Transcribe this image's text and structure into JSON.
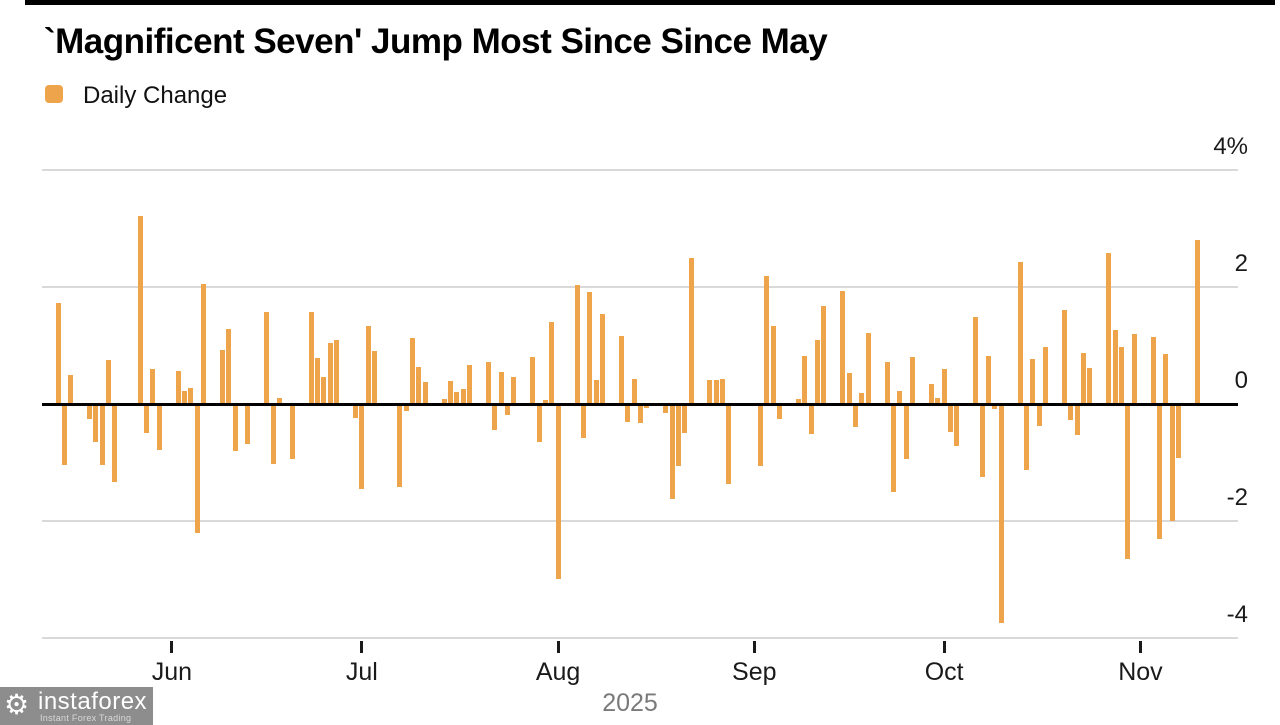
{
  "title": "`Magnificent Seven' Jump Most Since Since May",
  "legend": {
    "label": "Daily Change",
    "swatch_color": "#eda44b"
  },
  "watermark": {
    "brand": "instaforex",
    "tagline": "Instant Forex Trading",
    "logo": "gear-icon"
  },
  "chart_data": {
    "type": "bar",
    "title": "`Magnificent Seven' Jump Most Since Since May",
    "series_name": "Daily Change",
    "unit": "%",
    "bar_color": "#eda44b",
    "x_unit": "calendar day offset from first bar (mid-May 2025), weekends/holidays empty",
    "x_axis": {
      "year_label": "2025",
      "months": [
        {
          "label": "Jun",
          "d": 18
        },
        {
          "label": "Jul",
          "d": 48
        },
        {
          "label": "Aug",
          "d": 79
        },
        {
          "label": "Sep",
          "d": 110
        },
        {
          "label": "Oct",
          "d": 140
        },
        {
          "label": "Nov",
          "d": 171
        }
      ]
    },
    "y_axis": {
      "ticks": [
        {
          "text": "4%",
          "value": 4
        },
        {
          "text": "2",
          "value": 2
        },
        {
          "text": "0",
          "value": 0
        },
        {
          "text": "-2",
          "value": -2
        },
        {
          "text": "-4",
          "value": -4
        }
      ],
      "ylim": [
        -4.6,
        4.6
      ],
      "grid": true,
      "label_side": "right"
    },
    "points": [
      {
        "d": 0,
        "v": 1.73
      },
      {
        "d": 1,
        "v": -1.05
      },
      {
        "d": 2,
        "v": 0.5
      },
      {
        "d": 5,
        "v": -0.25
      },
      {
        "d": 6,
        "v": -0.65
      },
      {
        "d": 7,
        "v": -1.05
      },
      {
        "d": 8,
        "v": 0.75
      },
      {
        "d": 9,
        "v": -1.33
      },
      {
        "d": 13,
        "v": 3.22
      },
      {
        "d": 14,
        "v": -0.5
      },
      {
        "d": 15,
        "v": 0.59
      },
      {
        "d": 16,
        "v": -0.78
      },
      {
        "d": 19,
        "v": 0.57
      },
      {
        "d": 20,
        "v": 0.22
      },
      {
        "d": 21,
        "v": 0.27
      },
      {
        "d": 22,
        "v": -2.21
      },
      {
        "d": 23,
        "v": 2.05
      },
      {
        "d": 26,
        "v": 0.93
      },
      {
        "d": 27,
        "v": 1.29
      },
      {
        "d": 28,
        "v": -0.8
      },
      {
        "d": 30,
        "v": -0.69
      },
      {
        "d": 33,
        "v": 1.57
      },
      {
        "d": 34,
        "v": -1.03
      },
      {
        "d": 35,
        "v": 0.1
      },
      {
        "d": 37,
        "v": -0.94
      },
      {
        "d": 40,
        "v": 1.57
      },
      {
        "d": 41,
        "v": 0.78
      },
      {
        "d": 42,
        "v": 0.47
      },
      {
        "d": 43,
        "v": 1.05
      },
      {
        "d": 44,
        "v": 1.1
      },
      {
        "d": 47,
        "v": -0.24
      },
      {
        "d": 48,
        "v": -1.45
      },
      {
        "d": 49,
        "v": 1.34
      },
      {
        "d": 50,
        "v": 0.9
      },
      {
        "d": 54,
        "v": -1.42
      },
      {
        "d": 55,
        "v": -0.12
      },
      {
        "d": 56,
        "v": 1.12
      },
      {
        "d": 57,
        "v": 0.64
      },
      {
        "d": 58,
        "v": 0.37
      },
      {
        "d": 61,
        "v": 0.08
      },
      {
        "d": 62,
        "v": 0.4
      },
      {
        "d": 63,
        "v": 0.21
      },
      {
        "d": 64,
        "v": 0.25
      },
      {
        "d": 65,
        "v": 0.66
      },
      {
        "d": 68,
        "v": 0.71
      },
      {
        "d": 69,
        "v": -0.45
      },
      {
        "d": 70,
        "v": 0.54
      },
      {
        "d": 71,
        "v": -0.18
      },
      {
        "d": 72,
        "v": 0.47
      },
      {
        "d": 75,
        "v": 0.8
      },
      {
        "d": 76,
        "v": -0.65
      },
      {
        "d": 77,
        "v": 0.06
      },
      {
        "d": 78,
        "v": 1.4
      },
      {
        "d": 79,
        "v": -2.99
      },
      {
        "d": 82,
        "v": 2.04
      },
      {
        "d": 83,
        "v": -0.58
      },
      {
        "d": 84,
        "v": 1.91
      },
      {
        "d": 85,
        "v": 0.41
      },
      {
        "d": 86,
        "v": 1.53
      },
      {
        "d": 89,
        "v": 1.16
      },
      {
        "d": 90,
        "v": -0.3
      },
      {
        "d": 91,
        "v": 0.42
      },
      {
        "d": 92,
        "v": -0.33
      },
      {
        "d": 93,
        "v": -0.07
      },
      {
        "d": 96,
        "v": -0.16
      },
      {
        "d": 97,
        "v": -1.62
      },
      {
        "d": 98,
        "v": -1.06
      },
      {
        "d": 99,
        "v": -0.5
      },
      {
        "d": 100,
        "v": 2.5
      },
      {
        "d": 103,
        "v": 0.41
      },
      {
        "d": 104,
        "v": 0.41
      },
      {
        "d": 105,
        "v": 0.42
      },
      {
        "d": 106,
        "v": -1.37
      },
      {
        "d": 111,
        "v": -1.06
      },
      {
        "d": 112,
        "v": 2.19
      },
      {
        "d": 113,
        "v": 1.33
      },
      {
        "d": 114,
        "v": -0.25
      },
      {
        "d": 117,
        "v": 0.08
      },
      {
        "d": 118,
        "v": 0.82
      },
      {
        "d": 119,
        "v": -0.52
      },
      {
        "d": 120,
        "v": 1.1
      },
      {
        "d": 121,
        "v": 1.67
      },
      {
        "d": 124,
        "v": 1.94
      },
      {
        "d": 125,
        "v": 0.53
      },
      {
        "d": 126,
        "v": -0.4
      },
      {
        "d": 127,
        "v": 0.19
      },
      {
        "d": 128,
        "v": 1.22
      },
      {
        "d": 131,
        "v": 0.72
      },
      {
        "d": 132,
        "v": -1.51
      },
      {
        "d": 133,
        "v": 0.23
      },
      {
        "d": 134,
        "v": -0.94
      },
      {
        "d": 135,
        "v": 0.8
      },
      {
        "d": 138,
        "v": 0.35
      },
      {
        "d": 139,
        "v": 0.1
      },
      {
        "d": 140,
        "v": 0.59
      },
      {
        "d": 141,
        "v": -0.48
      },
      {
        "d": 142,
        "v": -0.71
      },
      {
        "d": 145,
        "v": 1.49
      },
      {
        "d": 146,
        "v": -1.25
      },
      {
        "d": 147,
        "v": 0.82
      },
      {
        "d": 148,
        "v": -0.09
      },
      {
        "d": 149,
        "v": -3.75
      },
      {
        "d": 152,
        "v": 2.43
      },
      {
        "d": 153,
        "v": -1.12
      },
      {
        "d": 154,
        "v": 0.77
      },
      {
        "d": 155,
        "v": -0.37
      },
      {
        "d": 156,
        "v": 0.98
      },
      {
        "d": 159,
        "v": 1.6
      },
      {
        "d": 160,
        "v": -0.28
      },
      {
        "d": 161,
        "v": -0.53
      },
      {
        "d": 162,
        "v": 0.87
      },
      {
        "d": 163,
        "v": 0.62
      },
      {
        "d": 166,
        "v": 2.58
      },
      {
        "d": 167,
        "v": 1.26
      },
      {
        "d": 168,
        "v": 0.97
      },
      {
        "d": 169,
        "v": -2.65
      },
      {
        "d": 170,
        "v": 1.2
      },
      {
        "d": 173,
        "v": 1.15
      },
      {
        "d": 174,
        "v": -2.3
      },
      {
        "d": 175,
        "v": 0.86
      },
      {
        "d": 176,
        "v": -2.0
      },
      {
        "d": 177,
        "v": -0.92
      },
      {
        "d": 180,
        "v": 2.81
      }
    ]
  }
}
